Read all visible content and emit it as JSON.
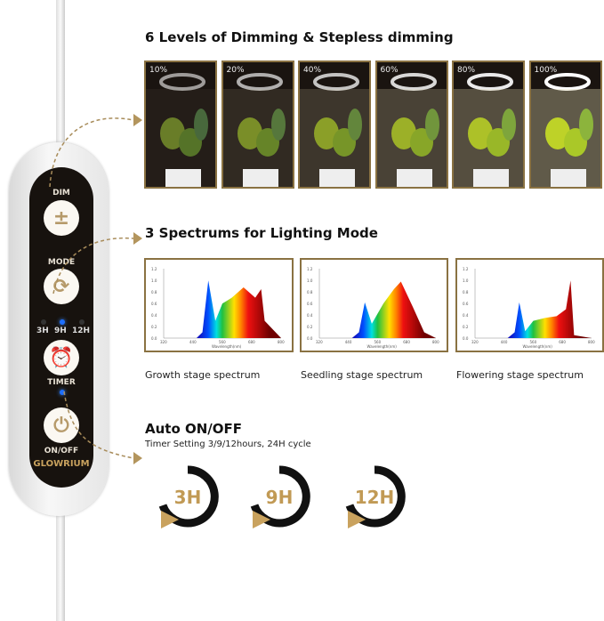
{
  "controller": {
    "brand": "GLOWRIUM",
    "buttons": [
      {
        "label": "DIM",
        "icon": "plus-minus-icon"
      },
      {
        "label": "MODE",
        "icon": "cycle-arrows-icon"
      },
      {
        "label": "TIMER",
        "icon": "alarm-clock-icon"
      },
      {
        "label": "ON/OFF",
        "icon": "power-icon"
      }
    ],
    "timer_leds": [
      "3H",
      "9H",
      "12H"
    ],
    "active_timer": "9H",
    "led_color": "#1e6fff"
  },
  "dimming": {
    "title": "6 Levels of Dimming & Stepless dimming",
    "levels": [
      "10%",
      "20%",
      "40%",
      "60%",
      "80%",
      "100%"
    ]
  },
  "spectrums": {
    "title": "3 Spectrums for Lighting Mode",
    "charts": [
      {
        "caption": "Growth stage spectrum"
      },
      {
        "caption": "Seedling stage spectrum"
      },
      {
        "caption": "Flowering stage spectrum"
      }
    ],
    "x_ticks": [
      "320",
      "440",
      "560",
      "680",
      "800"
    ],
    "y_ticks": [
      "0.0",
      "0.2",
      "0.4",
      "0.6",
      "0.8",
      "1.0",
      "1.2"
    ],
    "xlabel": "Wavelength(nm)"
  },
  "auto": {
    "title": "Auto ON/OFF",
    "subtitle": "Timer Setting 3/9/12hours, 24H  cycle",
    "timers": [
      "3H",
      "9H",
      "12H"
    ]
  },
  "accent": "#b3955d"
}
